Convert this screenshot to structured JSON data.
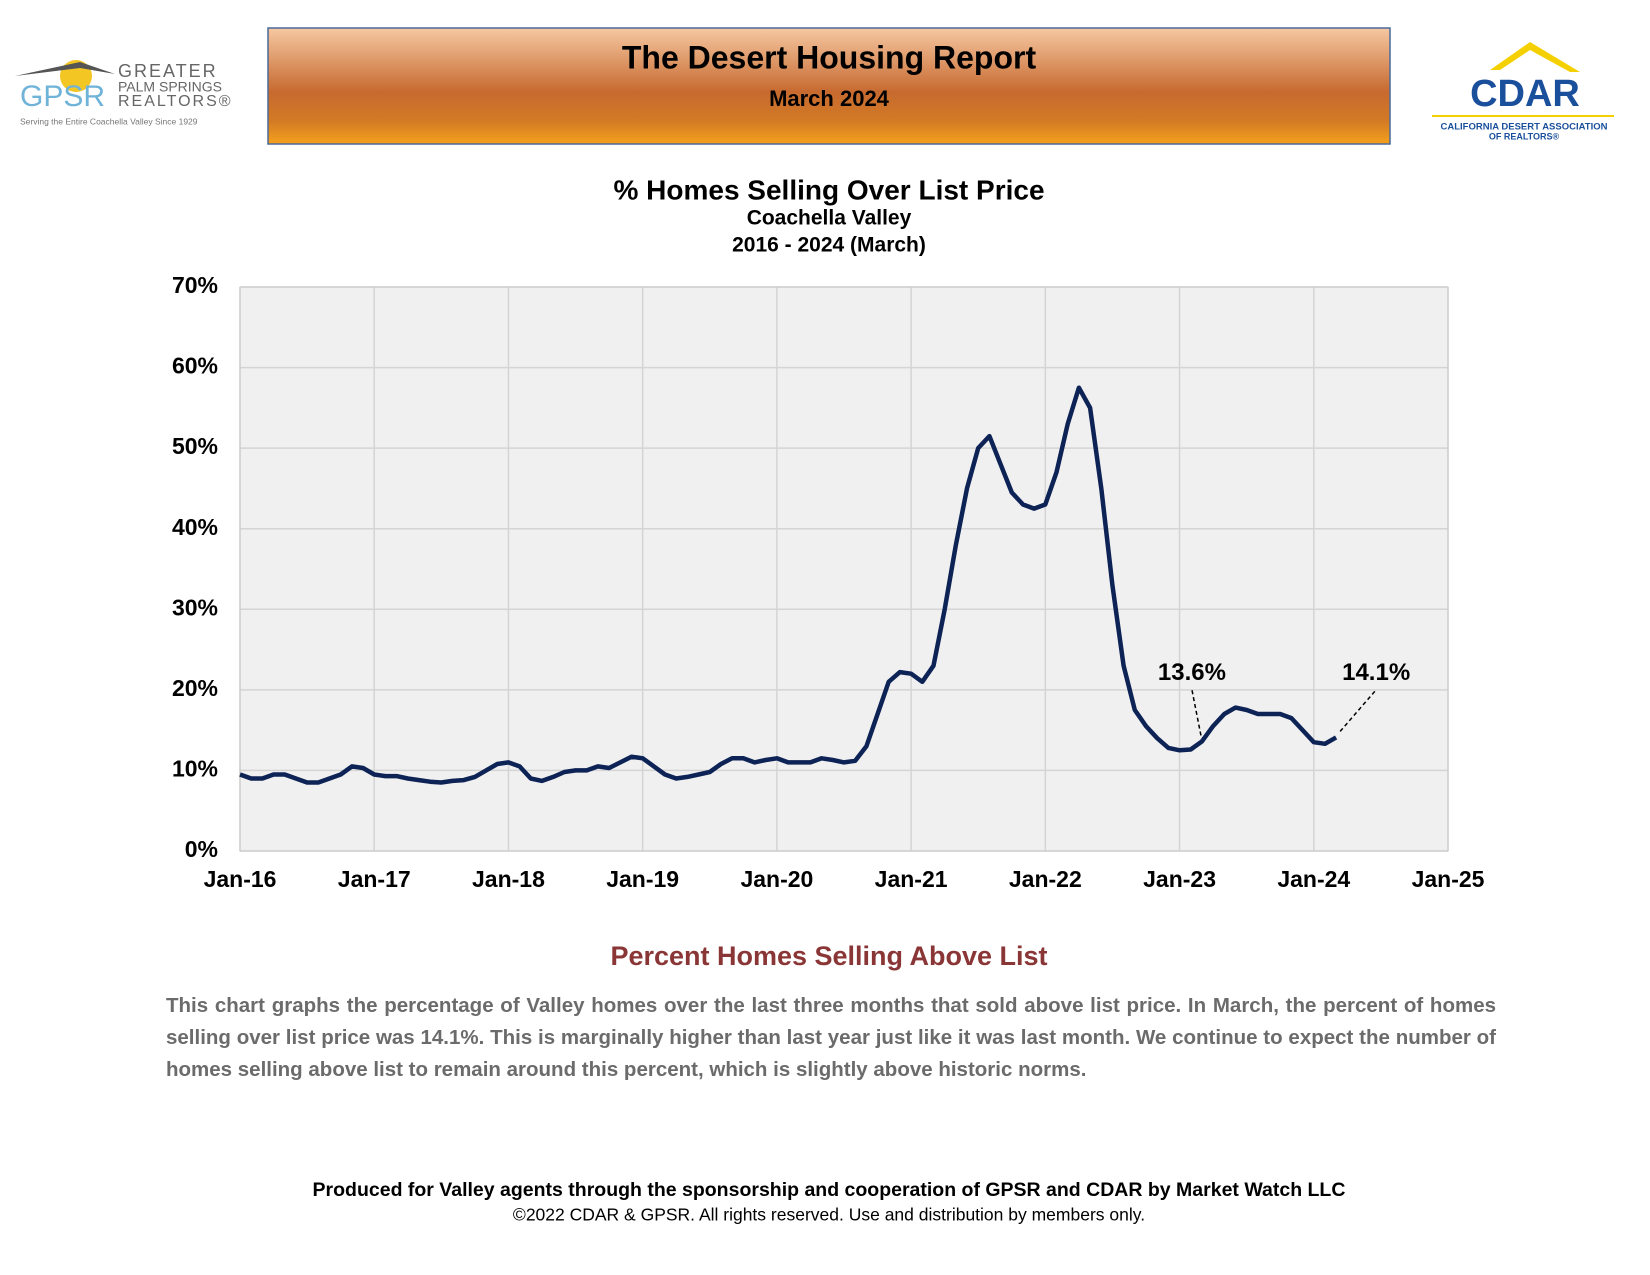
{
  "header": {
    "title": "The Desert Housing Report",
    "subtitle": "March 2024"
  },
  "logo_left": {
    "mark": "GPSR",
    "line1": "GREATER",
    "line2": "PALM SPRINGS",
    "line3": "REALTORS®",
    "tagline": "Serving the Entire Coachella Valley Since 1929"
  },
  "logo_right": {
    "mark": "CDAR",
    "line1": "CALIFORNIA DESERT ASSOCIATION",
    "line2": "OF REALTORS®"
  },
  "chart_data": {
    "type": "line",
    "title": "% Homes Selling Over List Price",
    "subtitle": "Coachella Valley",
    "subtitle2": "2016 - 2024 (March)",
    "color": "#0d2356",
    "grid": true,
    "x": [
      "2016-01",
      "2016-02",
      "2016-03",
      "2016-04",
      "2016-05",
      "2016-06",
      "2016-07",
      "2016-08",
      "2016-09",
      "2016-10",
      "2016-11",
      "2016-12",
      "2017-01",
      "2017-02",
      "2017-03",
      "2017-04",
      "2017-05",
      "2017-06",
      "2017-07",
      "2017-08",
      "2017-09",
      "2017-10",
      "2017-11",
      "2017-12",
      "2018-01",
      "2018-02",
      "2018-03",
      "2018-04",
      "2018-05",
      "2018-06",
      "2018-07",
      "2018-08",
      "2018-09",
      "2018-10",
      "2018-11",
      "2018-12",
      "2019-01",
      "2019-02",
      "2019-03",
      "2019-04",
      "2019-05",
      "2019-06",
      "2019-07",
      "2019-08",
      "2019-09",
      "2019-10",
      "2019-11",
      "2019-12",
      "2020-01",
      "2020-02",
      "2020-03",
      "2020-04",
      "2020-05",
      "2020-06",
      "2020-07",
      "2020-08",
      "2020-09",
      "2020-10",
      "2020-11",
      "2020-12",
      "2021-01",
      "2021-02",
      "2021-03",
      "2021-04",
      "2021-05",
      "2021-06",
      "2021-07",
      "2021-08",
      "2021-09",
      "2021-10",
      "2021-11",
      "2021-12",
      "2022-01",
      "2022-02",
      "2022-03",
      "2022-04",
      "2022-05",
      "2022-06",
      "2022-07",
      "2022-08",
      "2022-09",
      "2022-10",
      "2022-11",
      "2022-12",
      "2023-01",
      "2023-02",
      "2023-03",
      "2023-04",
      "2023-05",
      "2023-06",
      "2023-07",
      "2023-08",
      "2023-09",
      "2023-10",
      "2023-11",
      "2023-12",
      "2024-01",
      "2024-02",
      "2024-03"
    ],
    "values": [
      9.5,
      9,
      9,
      9.5,
      9.5,
      9,
      8.5,
      8.5,
      9,
      9.5,
      10.5,
      10.3,
      9.5,
      9.3,
      9.3,
      9,
      8.8,
      8.6,
      8.5,
      8.7,
      8.8,
      9.2,
      10,
      10.8,
      11,
      10.5,
      9,
      8.7,
      9.2,
      9.8,
      10,
      10,
      10.5,
      10.3,
      11,
      11.7,
      11.5,
      10.5,
      9.5,
      9,
      9.2,
      9.5,
      9.8,
      10.8,
      11.5,
      11.5,
      11,
      11.3,
      11.5,
      11,
      11,
      11,
      11.5,
      11.3,
      11,
      11.2,
      13,
      17,
      21,
      22.2,
      22,
      21,
      23,
      30,
      38,
      45,
      50,
      51.5,
      48,
      44.5,
      43,
      42.5,
      43,
      47,
      53,
      57.5,
      55,
      45,
      33,
      23,
      17.5,
      15.5,
      14,
      12.8,
      12.5,
      12.6,
      13.6,
      15.5,
      17,
      17.8,
      17.5,
      17,
      17,
      17,
      16.5,
      15,
      13.5,
      13.3,
      14.1
    ],
    "value_labels": [
      null,
      null,
      null,
      null,
      null,
      null,
      null,
      null,
      null,
      null,
      null,
      null,
      null,
      null,
      null,
      null,
      null,
      null,
      null,
      null,
      null,
      null,
      null,
      null,
      null,
      null,
      null,
      null,
      null,
      null,
      null,
      null,
      null,
      null,
      null,
      null,
      null,
      null,
      null,
      null,
      null,
      null,
      null,
      null,
      null,
      null,
      null,
      null,
      null,
      null,
      null,
      null,
      null,
      null,
      null,
      null,
      null,
      null,
      null,
      null,
      null,
      null,
      null,
      null,
      null,
      null,
      null,
      null,
      null,
      null,
      null,
      null,
      null,
      null,
      null,
      null,
      null,
      null,
      null,
      null,
      null,
      null,
      null,
      null,
      null,
      null,
      "13.6%",
      null,
      null,
      null,
      null,
      null,
      null,
      null,
      null,
      null,
      null,
      null,
      "14.1%"
    ],
    "xlim": [
      "2016-01",
      "2025-01"
    ],
    "xticks": [
      {
        "value": "2016-01",
        "label": "Jan-16"
      },
      {
        "value": "2017-01",
        "label": "Jan-17"
      },
      {
        "value": "2018-01",
        "label": "Jan-18"
      },
      {
        "value": "2019-01",
        "label": "Jan-19"
      },
      {
        "value": "2020-01",
        "label": "Jan-20"
      },
      {
        "value": "2021-01",
        "label": "Jan-21"
      },
      {
        "value": "2022-01",
        "label": "Jan-22"
      },
      {
        "value": "2023-01",
        "label": "Jan-23"
      },
      {
        "value": "2024-01",
        "label": "Jan-24"
      },
      {
        "value": "2025-01",
        "label": "Jan-25"
      }
    ],
    "ylim": [
      0,
      70
    ],
    "yticks": [
      {
        "value": 0,
        "label": "0%"
      },
      {
        "value": 10,
        "label": "10%"
      },
      {
        "value": 20,
        "label": "20%"
      },
      {
        "value": 30,
        "label": "30%"
      },
      {
        "value": 40,
        "label": "40%"
      },
      {
        "value": 50,
        "label": "50%"
      },
      {
        "value": 60,
        "label": "60%"
      },
      {
        "value": 70,
        "label": "70%"
      }
    ]
  },
  "section": {
    "heading": "Percent Homes Selling Above List",
    "body": "This chart graphs the percentage of Valley homes over the last three months that sold above list price. In March, the percent of homes selling over list price was 14.1%. This is marginally higher than last year just like it was last month. We continue to expect the number of homes selling above list to remain around this percent, which is slightly above historic norms."
  },
  "footer": {
    "line1": "Produced for Valley agents through the sponsorship and cooperation of GPSR and CDAR by Market Watch LLC",
    "line2": "©2022 CDAR & GPSR.  All rights reserved.  Use and distribution by members only."
  }
}
